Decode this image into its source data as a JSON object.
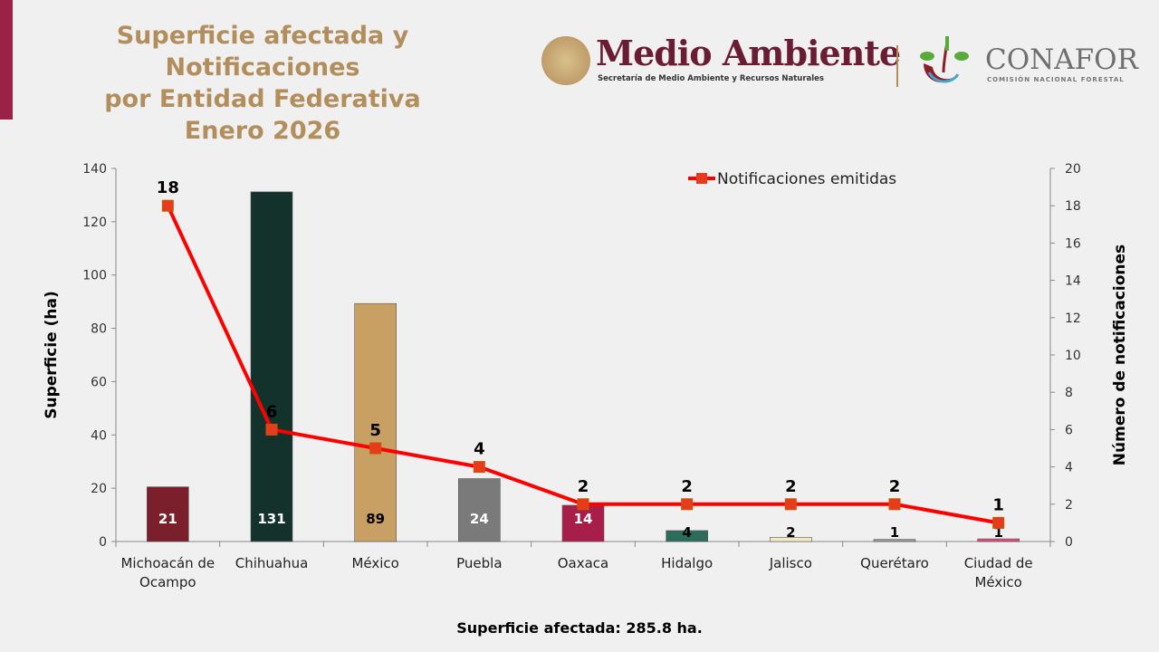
{
  "header": {
    "title_lines": [
      "Superficie afectada y Notificaciones",
      "por Entidad Federativa",
      "Enero 2026"
    ],
    "logo_semarnat": {
      "name": "Medio Ambiente",
      "subtitle": "Secretaría de Medio Ambiente y Recursos Naturales"
    },
    "logo_conafor": {
      "name": "CONAFOR",
      "subtitle": "COMISIÓN NACIONAL FORESTAL"
    }
  },
  "colors": {
    "accent": "#9b2247",
    "title": "#b38e5d",
    "line": "#ff0000",
    "marker": "#e83a1c"
  },
  "chart_data": {
    "type": "bar+line",
    "categories": [
      [
        "Michoacán de",
        "Ocampo"
      ],
      [
        "Chihuahua"
      ],
      [
        "México"
      ],
      [
        "Puebla"
      ],
      [
        "Oaxaca"
      ],
      [
        "Hidalgo"
      ],
      [
        "Jalisco"
      ],
      [
        "Querétaro"
      ],
      [
        "Ciudad de",
        "México"
      ]
    ],
    "bar_series": {
      "axis": "left",
      "values": [
        20.5,
        131.2,
        89.3,
        23.6,
        13.6,
        4.1,
        1.6,
        0.8,
        1.0
      ],
      "labels": [
        "21",
        "131",
        "89",
        "24",
        "14",
        "4",
        "2",
        "1",
        "1"
      ],
      "colors": [
        "#7a1f2b",
        "#13322b",
        "#c8a064",
        "#7a7a7a",
        "#a81e4a",
        "#2d6b5a",
        "#f3e9c6",
        "#9a9a9a",
        "#d94c7c"
      ],
      "label_colors": [
        "#fff",
        "#fff",
        "#000",
        "#fff",
        "#fff",
        "#000",
        "#000",
        "#000",
        "#000"
      ]
    },
    "line_series": {
      "name": "Notificaciones emitidas",
      "axis": "right",
      "values": [
        18,
        6,
        5,
        4,
        2,
        2,
        2,
        2,
        1
      ]
    },
    "ylabel": "Superficie (ha)",
    "y2label": "Número de notificaciones",
    "ylim": [
      0,
      140
    ],
    "yticks": [
      0,
      20,
      40,
      60,
      80,
      100,
      120,
      140
    ],
    "y2lim": [
      0,
      20
    ],
    "y2ticks": [
      0,
      2,
      4,
      6,
      8,
      10,
      12,
      14,
      16,
      18,
      20
    ],
    "legend_position": "top-right",
    "grid": false
  },
  "footer": "Superficie afectada: 285.8 ha."
}
